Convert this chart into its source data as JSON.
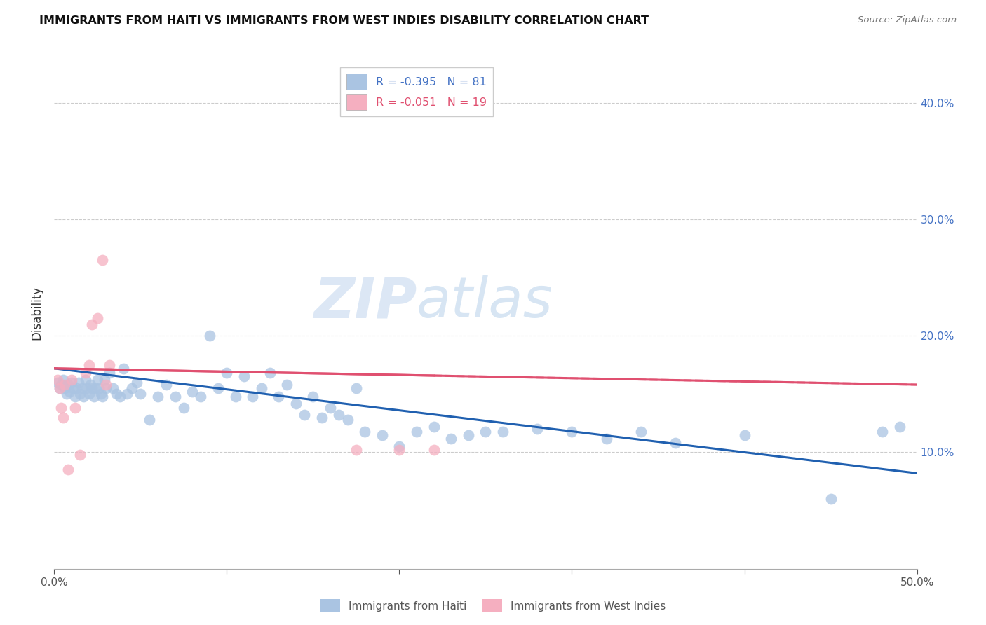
{
  "title": "IMMIGRANTS FROM HAITI VS IMMIGRANTS FROM WEST INDIES DISABILITY CORRELATION CHART",
  "source": "Source: ZipAtlas.com",
  "ylabel": "Disability",
  "xlim": [
    0.0,
    0.5
  ],
  "ylim": [
    0.0,
    0.44
  ],
  "x_ticks": [
    0.0,
    0.1,
    0.2,
    0.3,
    0.4,
    0.5
  ],
  "x_tick_labels": [
    "0.0%",
    "",
    "",
    "",
    "",
    "50.0%"
  ],
  "y_ticks": [
    0.1,
    0.2,
    0.3,
    0.4
  ],
  "y_tick_labels": [
    "10.0%",
    "20.0%",
    "30.0%",
    "40.0%"
  ],
  "haiti_R": -0.395,
  "haiti_N": 81,
  "west_indies_R": -0.051,
  "west_indies_N": 19,
  "haiti_color": "#aac4e2",
  "west_indies_color": "#f5afc0",
  "haiti_line_color": "#2060b0",
  "west_indies_line_color": "#e05070",
  "watermark_zip": "ZIP",
  "watermark_atlas": "atlas",
  "haiti_x": [
    0.002,
    0.003,
    0.004,
    0.005,
    0.006,
    0.007,
    0.008,
    0.009,
    0.01,
    0.011,
    0.012,
    0.013,
    0.014,
    0.015,
    0.016,
    0.017,
    0.018,
    0.019,
    0.02,
    0.021,
    0.022,
    0.023,
    0.024,
    0.025,
    0.026,
    0.027,
    0.028,
    0.029,
    0.03,
    0.032,
    0.034,
    0.036,
    0.038,
    0.04,
    0.042,
    0.045,
    0.048,
    0.05,
    0.055,
    0.06,
    0.065,
    0.07,
    0.075,
    0.08,
    0.085,
    0.09,
    0.095,
    0.1,
    0.105,
    0.11,
    0.115,
    0.12,
    0.125,
    0.13,
    0.135,
    0.14,
    0.145,
    0.15,
    0.155,
    0.16,
    0.165,
    0.17,
    0.175,
    0.18,
    0.19,
    0.2,
    0.21,
    0.22,
    0.23,
    0.24,
    0.25,
    0.26,
    0.28,
    0.3,
    0.32,
    0.34,
    0.36,
    0.4,
    0.45,
    0.48,
    0.49
  ],
  "haiti_y": [
    0.16,
    0.155,
    0.158,
    0.162,
    0.155,
    0.15,
    0.158,
    0.152,
    0.16,
    0.155,
    0.148,
    0.155,
    0.16,
    0.15,
    0.155,
    0.148,
    0.162,
    0.155,
    0.15,
    0.158,
    0.155,
    0.148,
    0.155,
    0.162,
    0.155,
    0.15,
    0.148,
    0.162,
    0.155,
    0.168,
    0.155,
    0.15,
    0.148,
    0.172,
    0.15,
    0.155,
    0.16,
    0.15,
    0.128,
    0.148,
    0.158,
    0.148,
    0.138,
    0.152,
    0.148,
    0.2,
    0.155,
    0.168,
    0.148,
    0.165,
    0.148,
    0.155,
    0.168,
    0.148,
    0.158,
    0.142,
    0.132,
    0.148,
    0.13,
    0.138,
    0.132,
    0.128,
    0.155,
    0.118,
    0.115,
    0.105,
    0.118,
    0.122,
    0.112,
    0.115,
    0.118,
    0.118,
    0.12,
    0.118,
    0.112,
    0.118,
    0.108,
    0.115,
    0.06,
    0.118,
    0.122
  ],
  "west_indies_x": [
    0.002,
    0.003,
    0.004,
    0.005,
    0.006,
    0.008,
    0.01,
    0.012,
    0.015,
    0.018,
    0.02,
    0.022,
    0.025,
    0.028,
    0.03,
    0.032,
    0.175,
    0.2,
    0.22
  ],
  "west_indies_y": [
    0.162,
    0.155,
    0.138,
    0.13,
    0.158,
    0.085,
    0.162,
    0.138,
    0.098,
    0.168,
    0.175,
    0.21,
    0.215,
    0.265,
    0.158,
    0.175,
    0.102,
    0.102,
    0.102
  ]
}
